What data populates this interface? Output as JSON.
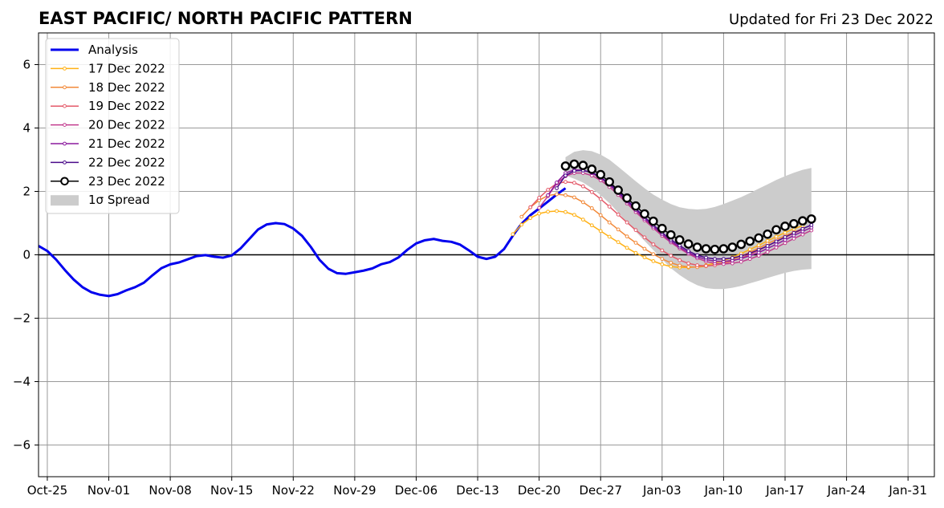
{
  "chart_data": {
    "type": "line",
    "title": "EAST PACIFIC/ NORTH PACIFIC PATTERN",
    "subtitle": "Updated for Fri 23 Dec 2022",
    "xlabel": "",
    "ylabel": "",
    "x_range": [
      "2022-10-24",
      "2023-02-03"
    ],
    "ylim": [
      -7,
      7
    ],
    "yticks": [
      6,
      4,
      2,
      0,
      -2,
      -4,
      -6
    ],
    "ytick_labels": [
      "6",
      "4",
      "2",
      "0",
      "−2",
      "−4",
      "−6"
    ],
    "xticks": [
      "2022-10-25",
      "2022-11-01",
      "2022-11-08",
      "2022-11-15",
      "2022-11-22",
      "2022-11-29",
      "2022-12-06",
      "2022-12-13",
      "2022-12-20",
      "2022-12-27",
      "2023-01-03",
      "2023-01-10",
      "2023-01-17",
      "2023-01-24",
      "2023-01-31"
    ],
    "xtick_labels": [
      "Oct-25",
      "Nov-01",
      "Nov-08",
      "Nov-15",
      "Nov-22",
      "Nov-29",
      "Dec-06",
      "Dec-13",
      "Dec-20",
      "Dec-27",
      "Jan-03",
      "Jan-10",
      "Jan-17",
      "Jan-24",
      "Jan-31"
    ],
    "grid": true,
    "legend_position": "top-left",
    "zero_line": 0,
    "analysis": {
      "name": "Analysis",
      "color": "#0000ee",
      "start": "2022-10-24",
      "values": [
        0.28,
        0.12,
        -0.15,
        -0.48,
        -0.78,
        -1.02,
        -1.18,
        -1.26,
        -1.3,
        -1.24,
        -1.12,
        -1.02,
        -0.88,
        -0.64,
        -0.42,
        -0.3,
        -0.24,
        -0.14,
        -0.04,
        -0.01,
        -0.06,
        -0.09,
        -0.02,
        0.2,
        0.5,
        0.8,
        0.96,
        1.0,
        0.97,
        0.83,
        0.6,
        0.25,
        -0.16,
        -0.44,
        -0.58,
        -0.6,
        -0.55,
        -0.5,
        -0.43,
        -0.3,
        -0.23,
        -0.08,
        0.16,
        0.36,
        0.46,
        0.5,
        0.44,
        0.41,
        0.32,
        0.14,
        -0.06,
        -0.13,
        -0.06,
        0.18,
        0.6,
        0.98,
        1.25,
        1.46,
        1.68,
        1.9,
        2.1
      ]
    },
    "forecasts": [
      {
        "name": "17 Dec 2022",
        "color": "#ffb114",
        "start": "2022-12-17",
        "values": [
          0.65,
          0.95,
          1.16,
          1.3,
          1.36,
          1.38,
          1.35,
          1.26,
          1.11,
          0.93,
          0.75,
          0.57,
          0.4,
          0.22,
          0.06,
          -0.08,
          -0.2,
          -0.3,
          -0.37,
          -0.4,
          -0.4,
          -0.38,
          -0.33,
          -0.26,
          -0.18,
          -0.08,
          0.04,
          0.17,
          0.3,
          0.44,
          0.57,
          0.7,
          0.82,
          0.92
        ]
      },
      {
        "name": "18 Dec 2022",
        "color": "#f28a3a",
        "start": "2022-12-18",
        "values": [
          1.2,
          1.5,
          1.72,
          1.87,
          1.91,
          1.88,
          1.81,
          1.66,
          1.47,
          1.25,
          1.02,
          0.8,
          0.58,
          0.38,
          0.19,
          0.02,
          -0.13,
          -0.25,
          -0.34,
          -0.38,
          -0.39,
          -0.36,
          -0.31,
          -0.24,
          -0.15,
          -0.04,
          0.08,
          0.21,
          0.35,
          0.48,
          0.6,
          0.72,
          0.82
        ]
      },
      {
        "name": "19 Dec 2022",
        "color": "#e45a6a",
        "start": "2022-12-19",
        "values": [
          1.5,
          1.8,
          2.05,
          2.25,
          2.3,
          2.27,
          2.16,
          1.98,
          1.76,
          1.52,
          1.27,
          1.02,
          0.78,
          0.55,
          0.33,
          0.14,
          -0.03,
          -0.17,
          -0.27,
          -0.33,
          -0.35,
          -0.33,
          -0.28,
          -0.2,
          -0.1,
          0.01,
          0.14,
          0.28,
          0.42,
          0.55,
          0.68,
          0.8
        ]
      },
      {
        "name": "20 Dec 2022",
        "color": "#c23c8e",
        "start": "2022-12-20",
        "values": [
          1.48,
          1.85,
          2.25,
          2.48,
          2.58,
          2.58,
          2.5,
          2.35,
          2.14,
          1.89,
          1.62,
          1.35,
          1.09,
          0.84,
          0.6,
          0.39,
          0.2,
          0.03,
          -0.11,
          -0.21,
          -0.27,
          -0.29,
          -0.27,
          -0.22,
          -0.13,
          -0.03,
          0.09,
          0.23,
          0.37,
          0.51,
          0.64,
          0.77
        ]
      },
      {
        "name": "21 Dec 2022",
        "color": "#8b1a9e",
        "start": "2022-12-21",
        "values": [
          1.88,
          2.28,
          2.58,
          2.68,
          2.67,
          2.58,
          2.42,
          2.21,
          1.95,
          1.68,
          1.41,
          1.14,
          0.89,
          0.65,
          0.43,
          0.24,
          0.07,
          -0.06,
          -0.15,
          -0.2,
          -0.21,
          -0.18,
          -0.12,
          -0.03,
          0.07,
          0.2,
          0.33,
          0.47,
          0.61,
          0.74,
          0.86
        ]
      },
      {
        "name": "22 Dec 2022",
        "color": "#4a0a8a",
        "start": "2022-12-22",
        "values": [
          2.1,
          2.5,
          2.65,
          2.66,
          2.6,
          2.45,
          2.25,
          2.0,
          1.73,
          1.46,
          1.19,
          0.94,
          0.7,
          0.48,
          0.29,
          0.12,
          -0.01,
          -0.09,
          -0.13,
          -0.13,
          -0.1,
          -0.04,
          0.05,
          0.16,
          0.28,
          0.42,
          0.56,
          0.69,
          0.82,
          0.94
        ]
      }
    ],
    "latest": {
      "name": "23 Dec 2022",
      "color": "#000000",
      "start": "2022-12-23",
      "values": [
        2.8,
        2.86,
        2.82,
        2.7,
        2.53,
        2.3,
        2.04,
        1.79,
        1.54,
        1.29,
        1.06,
        0.83,
        0.63,
        0.47,
        0.34,
        0.24,
        0.19,
        0.17,
        0.19,
        0.24,
        0.33,
        0.43,
        0.53,
        0.65,
        0.79,
        0.9,
        0.98,
        1.07,
        1.13
      ]
    },
    "spread": {
      "name": "1σ Spread",
      "color": "#cccccc",
      "start": "2022-12-23",
      "upper": [
        3.08,
        3.25,
        3.3,
        3.27,
        3.16,
        3.0,
        2.78,
        2.55,
        2.32,
        2.1,
        1.9,
        1.74,
        1.6,
        1.5,
        1.45,
        1.43,
        1.45,
        1.51,
        1.6,
        1.71,
        1.82,
        1.95,
        2.09,
        2.22,
        2.36,
        2.48,
        2.59,
        2.68,
        2.74
      ],
      "lower": [
        2.5,
        2.4,
        2.28,
        2.1,
        1.88,
        1.63,
        1.33,
        1.02,
        0.73,
        0.44,
        0.15,
        -0.14,
        -0.42,
        -0.64,
        -0.82,
        -0.96,
        -1.05,
        -1.08,
        -1.08,
        -1.04,
        -0.98,
        -0.9,
        -0.82,
        -0.73,
        -0.65,
        -0.57,
        -0.51,
        -0.47,
        -0.45
      ]
    }
  }
}
